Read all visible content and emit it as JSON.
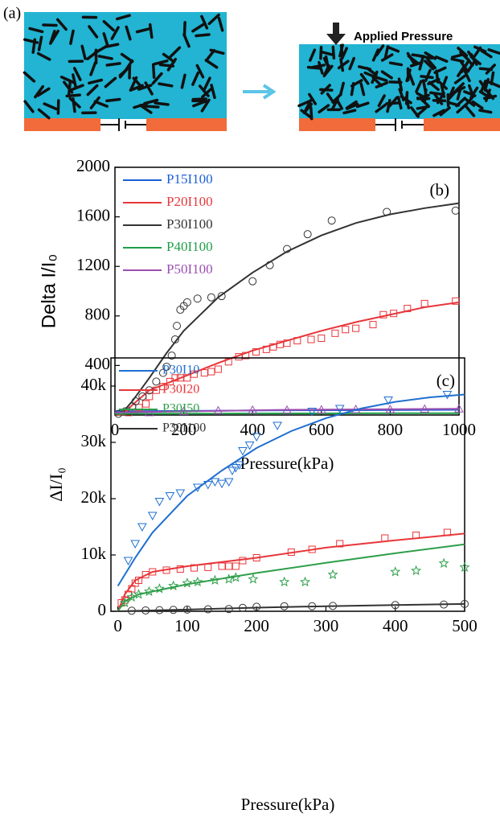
{
  "panel_a": {
    "label": "(a)",
    "annotation": "Applied Pressure"
  },
  "chart_data": [
    {
      "type": "scatter",
      "panel_label": "(b)",
      "xlabel": "Pressure(kPa)",
      "ylabel": "Delta I/I₀",
      "xlim": [
        0,
        1000
      ],
      "ylim": [
        0,
        2000
      ],
      "xticks": [
        0,
        200,
        400,
        600,
        800,
        1000
      ],
      "yticks": [
        400,
        800,
        1200,
        1600,
        2000
      ],
      "legend": "upper left",
      "series": [
        {
          "name": "P15I100",
          "color": "#1a5fd6",
          "fit_x": [
            0,
            500,
            1000
          ],
          "fit_values": [
            30,
            38,
            42
          ]
        },
        {
          "name": "P20I100",
          "color": "#e8363a",
          "marker": "square",
          "x": [
            40,
            70,
            90,
            100,
            120,
            140,
            160,
            175,
            190,
            210,
            230,
            260,
            280,
            300,
            330,
            360,
            380,
            410,
            440,
            460,
            480,
            500,
            530,
            570,
            600,
            640,
            670,
            700,
            750,
            780,
            810,
            850,
            900,
            990
          ],
          "values": [
            20,
            60,
            90,
            150,
            200,
            230,
            270,
            300,
            300,
            300,
            330,
            340,
            350,
            370,
            430,
            470,
            480,
            510,
            530,
            550,
            570,
            580,
            600,
            610,
            620,
            660,
            690,
            700,
            730,
            810,
            820,
            860,
            900,
            920
          ],
          "fit_x": [
            0,
            25,
            50,
            100,
            200,
            300,
            400,
            500,
            600,
            700,
            800,
            900,
            1000
          ],
          "fit_values": [
            0,
            5,
            80,
            200,
            310,
            420,
            520,
            600,
            680,
            750,
            810,
            870,
            910
          ]
        },
        {
          "name": "P30I100",
          "color": "#333333",
          "marker": "circle",
          "x": [
            10,
            30,
            50,
            60,
            80,
            100,
            120,
            140,
            150,
            165,
            175,
            180,
            190,
            200,
            210,
            240,
            280,
            310,
            400,
            450,
            500,
            560,
            630,
            790,
            990
          ],
          "values": [
            10,
            30,
            70,
            110,
            150,
            200,
            270,
            340,
            390,
            480,
            610,
            720,
            850,
            880,
            910,
            940,
            950,
            960,
            1080,
            1210,
            1340,
            1460,
            1570,
            1640,
            1650
          ],
          "fit_x": [
            0,
            25,
            50,
            100,
            150,
            200,
            300,
            400,
            500,
            600,
            700,
            800,
            900,
            1000
          ],
          "fit_values": [
            0,
            30,
            110,
            300,
            500,
            680,
            950,
            1150,
            1320,
            1450,
            1550,
            1620,
            1670,
            1710
          ]
        },
        {
          "name": "P40I100",
          "color": "#1f9e4a",
          "fit_x": [
            0,
            500,
            1000
          ],
          "fit_values": [
            10,
            13,
            15
          ]
        },
        {
          "name": "P50I100",
          "color": "#9b4fb0",
          "marker": "triangle",
          "x": [
            100,
            200,
            300,
            400,
            500,
            600,
            700,
            800,
            900,
            1000
          ],
          "values": [
            20,
            30,
            35,
            40,
            40,
            42,
            45,
            45,
            48,
            50
          ],
          "fit_x": [
            0,
            500,
            1000
          ],
          "fit_values": [
            20,
            42,
            50
          ]
        }
      ]
    },
    {
      "type": "scatter",
      "panel_label": "(c)",
      "xlabel": "Pressure(kPa)",
      "ylabel": "ΔI/I₀",
      "xlim": [
        -10,
        500
      ],
      "ylim": [
        0,
        45000
      ],
      "xticks": [
        0,
        100,
        200,
        300,
        400,
        500
      ],
      "yticks": [
        0,
        {
          "value": 10000,
          "label": "10k"
        },
        {
          "value": 20000,
          "label": "20k"
        },
        {
          "value": 30000,
          "label": "30k"
        },
        {
          "value": 40000,
          "label": "40k"
        }
      ],
      "legend": "upper left",
      "series": [
        {
          "name": "P30I10",
          "color": "#1f6fd0",
          "marker": "triangle-down",
          "x": [
            15,
            25,
            35,
            50,
            60,
            75,
            90,
            115,
            130,
            140,
            150,
            160,
            165,
            170,
            175,
            180,
            190,
            200,
            230,
            280,
            320,
            390,
            475
          ],
          "values": [
            9000,
            12000,
            15000,
            17000,
            19500,
            20500,
            21000,
            22000,
            22500,
            23000,
            22700,
            23000,
            25000,
            25500,
            26000,
            28500,
            29500,
            31000,
            33000,
            35500,
            36000,
            37500,
            38500
          ],
          "fit_x": [
            0,
            25,
            50,
            100,
            150,
            200,
            250,
            300,
            350,
            400,
            450,
            500
          ],
          "fit_values": [
            4500,
            9500,
            14000,
            20500,
            25000,
            29000,
            32000,
            34300,
            36000,
            37200,
            38000,
            38500
          ]
        },
        {
          "name": "P30I20",
          "color": "#e8363a",
          "marker": "square",
          "x": [
            5,
            10,
            15,
            20,
            25,
            30,
            40,
            50,
            70,
            90,
            110,
            130,
            150,
            160,
            170,
            180,
            200,
            250,
            280,
            320,
            385,
            430,
            475
          ],
          "values": [
            1500,
            2000,
            3000,
            4000,
            5000,
            5500,
            6500,
            7000,
            7300,
            7500,
            7700,
            7800,
            8000,
            8000,
            8000,
            9000,
            9500,
            10500,
            11000,
            12000,
            13000,
            13500,
            14000
          ],
          "fit_x": [
            0,
            10,
            25,
            50,
            100,
            200,
            300,
            400,
            500
          ],
          "fit_values": [
            0,
            3000,
            5500,
            7000,
            8000,
            9500,
            11300,
            12600,
            13800
          ]
        },
        {
          "name": "P30I50",
          "color": "#2e9e4a",
          "marker": "star",
          "x": [
            10,
            20,
            30,
            45,
            60,
            80,
            100,
            115,
            140,
            160,
            170,
            195,
            240,
            270,
            310,
            400,
            430,
            470,
            500
          ],
          "values": [
            1500,
            2500,
            3000,
            3500,
            4000,
            4500,
            5000,
            5200,
            5500,
            5700,
            6000,
            5700,
            5200,
            5200,
            6500,
            7000,
            7200,
            8500,
            7800
          ],
          "fit_x": [
            0,
            10,
            30,
            100,
            200,
            300,
            400,
            500
          ],
          "fit_values": [
            0,
            1800,
            3000,
            4800,
            6800,
            8600,
            10300,
            11900
          ]
        },
        {
          "name": "P30I100",
          "color": "#333333",
          "marker": "circle",
          "x": [
            20,
            40,
            60,
            80,
            100,
            130,
            160,
            180,
            200,
            240,
            280,
            310,
            400,
            470,
            500
          ],
          "values": [
            100,
            150,
            200,
            250,
            300,
            350,
            400,
            600,
            800,
            900,
            900,
            950,
            1100,
            1200,
            1300
          ],
          "fit_x": [
            0,
            100,
            200,
            300,
            400,
            500
          ],
          "fit_values": [
            0,
            300,
            650,
            900,
            1100,
            1300
          ]
        }
      ]
    }
  ]
}
